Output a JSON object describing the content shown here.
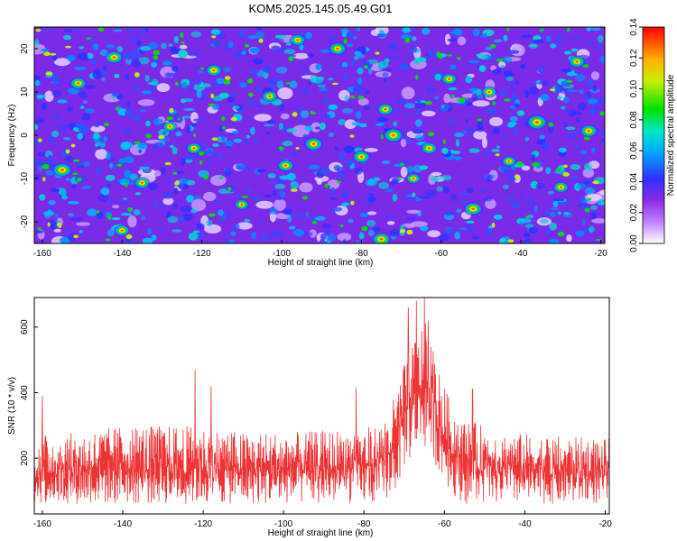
{
  "figure": {
    "title": "KOM5.2025.145.05.49.G01"
  },
  "chart_data": [
    {
      "type": "heatmap",
      "xlabel": "Height of straight line (km)",
      "ylabel": "Frequency (Hz)",
      "xlim": [
        -162,
        -19
      ],
      "ylim": [
        -25,
        25
      ],
      "xticks": [
        -160,
        -140,
        -120,
        -100,
        -80,
        -60,
        -40,
        -20
      ],
      "yticks": [
        -20,
        -10,
        0,
        10,
        20
      ],
      "colorbar": {
        "label": "Normalized spectral amplitude",
        "range": [
          0,
          0.14
        ],
        "ticks": [
          "0.00",
          "0.02",
          "0.04",
          "0.06",
          "0.08",
          "0.10",
          "0.12",
          "0.14"
        ],
        "colors": [
          "#ffffff",
          "#8a2be2",
          "#3030ff",
          "#00a8ff",
          "#00e8c8",
          "#00e000",
          "#f0f000",
          "#ff8000",
          "#ff0000"
        ]
      },
      "hotspots": [
        {
          "x": -155,
          "y": -8,
          "v": 0.13
        },
        {
          "x": -151,
          "y": 12,
          "v": 0.1
        },
        {
          "x": -142,
          "y": 18,
          "v": 0.11
        },
        {
          "x": -135,
          "y": -11,
          "v": 0.09
        },
        {
          "x": -128,
          "y": 2,
          "v": 0.08
        },
        {
          "x": -122,
          "y": -3,
          "v": 0.09
        },
        {
          "x": -117,
          "y": 15,
          "v": 0.1
        },
        {
          "x": -110,
          "y": -16,
          "v": 0.08
        },
        {
          "x": -103,
          "y": 9,
          "v": 0.09
        },
        {
          "x": -99,
          "y": -7,
          "v": 0.1
        },
        {
          "x": -92,
          "y": -2,
          "v": 0.12
        },
        {
          "x": -86,
          "y": 20,
          "v": 0.11
        },
        {
          "x": -80,
          "y": -5,
          "v": 0.11
        },
        {
          "x": -74,
          "y": 6,
          "v": 0.1
        },
        {
          "x": -72,
          "y": 0,
          "v": 0.13
        },
        {
          "x": -67,
          "y": -10,
          "v": 0.08
        },
        {
          "x": -63,
          "y": -3,
          "v": 0.1
        },
        {
          "x": -58,
          "y": 13,
          "v": 0.09
        },
        {
          "x": -52,
          "y": -17,
          "v": 0.12
        },
        {
          "x": -48,
          "y": 10,
          "v": 0.09
        },
        {
          "x": -43,
          "y": -6,
          "v": 0.08
        },
        {
          "x": -36,
          "y": 3,
          "v": 0.14
        },
        {
          "x": -30,
          "y": -12,
          "v": 0.09
        },
        {
          "x": -26,
          "y": 17,
          "v": 0.1
        },
        {
          "x": -23,
          "y": 1,
          "v": 0.11
        },
        {
          "x": -75,
          "y": -24,
          "v": 0.12
        },
        {
          "x": -140,
          "y": -22,
          "v": 0.09
        },
        {
          "x": -96,
          "y": 22,
          "v": 0.09
        }
      ]
    },
    {
      "type": "line",
      "xlabel": "Height of straight line (km)",
      "ylabel": "SNR (10 * v/v)",
      "xlim": [
        -162,
        -19
      ],
      "ylim": [
        30,
        690
      ],
      "xticks": [
        -160,
        -140,
        -120,
        -100,
        -80,
        -60,
        -40,
        -20
      ],
      "yticks": [
        200,
        400,
        600
      ],
      "color": "#ee3333",
      "envelope": [
        {
          "x": -162,
          "low": 60,
          "high": 270
        },
        {
          "x": -150,
          "low": 60,
          "high": 280
        },
        {
          "x": -140,
          "low": 60,
          "high": 300
        },
        {
          "x": -125,
          "low": 60,
          "high": 300
        },
        {
          "x": -110,
          "low": 60,
          "high": 280
        },
        {
          "x": -95,
          "low": 60,
          "high": 280
        },
        {
          "x": -85,
          "low": 60,
          "high": 290
        },
        {
          "x": -76,
          "low": 60,
          "high": 300
        },
        {
          "x": -72,
          "low": 100,
          "high": 400
        },
        {
          "x": -70,
          "low": 170,
          "high": 500
        },
        {
          "x": -67,
          "low": 220,
          "high": 580
        },
        {
          "x": -65,
          "low": 230,
          "high": 620
        },
        {
          "x": -63,
          "low": 200,
          "high": 560
        },
        {
          "x": -61,
          "low": 150,
          "high": 450
        },
        {
          "x": -58,
          "low": 90,
          "high": 360
        },
        {
          "x": -55,
          "low": 60,
          "high": 320
        },
        {
          "x": -45,
          "low": 60,
          "high": 280
        },
        {
          "x": -35,
          "low": 60,
          "high": 270
        },
        {
          "x": -19,
          "low": 60,
          "high": 260
        }
      ],
      "peaks": [
        {
          "x": -160,
          "y": 390
        },
        {
          "x": -122,
          "y": 470
        },
        {
          "x": -118,
          "y": 420
        },
        {
          "x": -82,
          "y": 415
        },
        {
          "x": -69,
          "y": 660
        },
        {
          "x": -67,
          "y": 680
        },
        {
          "x": -65,
          "y": 690
        },
        {
          "x": -64,
          "y": 620
        },
        {
          "x": -53,
          "y": 410
        }
      ]
    }
  ]
}
